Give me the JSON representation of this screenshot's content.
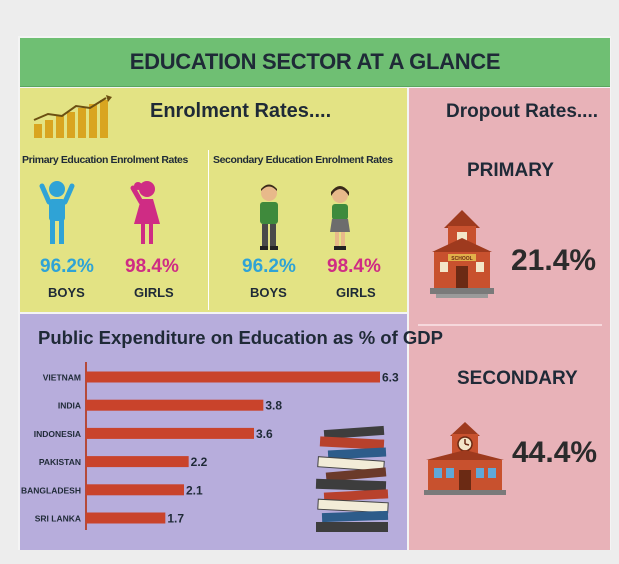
{
  "title": "EDUCATION SECTOR AT A GLANCE",
  "enrolment": {
    "heading": "Enrolment Rates....",
    "primary": {
      "label": "Primary Education Enrolment Rates",
      "boys_pct": "96.2%",
      "girls_pct": "98.4%",
      "boys_label": "BOYS",
      "girls_label": "GIRLS"
    },
    "secondary": {
      "label": "Secondary Education Enrolment Rates",
      "boys_pct": "96.2%",
      "girls_pct": "98.4%",
      "boys_label": "BOYS",
      "girls_label": "GIRLS"
    }
  },
  "dropout": {
    "heading": "Dropout Rates....",
    "primary_label": "PRIMARY",
    "primary_rate": "21.4%",
    "secondary_label": "SECONDARY",
    "secondary_rate": "44.4%",
    "school_sign": "SCHOOL"
  },
  "colors": {
    "bar": "#c9432b",
    "boy": "#2fa3d6",
    "girl": "#cf2c84",
    "title_bg": "#6fbf73"
  },
  "icons": [
    "bar-chart-icon",
    "boy-icon",
    "girl-icon",
    "schoolboy-icon",
    "schoolgirl-icon",
    "school-building-icon",
    "book-stack-icon"
  ],
  "chart_data": {
    "type": "bar",
    "orientation": "horizontal",
    "title": "Public Expenditure on Education as % of GDP",
    "categories": [
      "VIETNAM",
      "INDIA",
      "INDONESIA",
      "PAKISTAN",
      "BANGLADESH",
      "SRI LANKA"
    ],
    "values": [
      6.3,
      3.8,
      3.6,
      2.2,
      2.1,
      1.7
    ],
    "value_labels": [
      "6.3",
      "3.8",
      "3.6",
      "2.2",
      "2.1",
      "1.7"
    ],
    "xlim": [
      0,
      6.3
    ],
    "grid": false,
    "legend": "none"
  }
}
